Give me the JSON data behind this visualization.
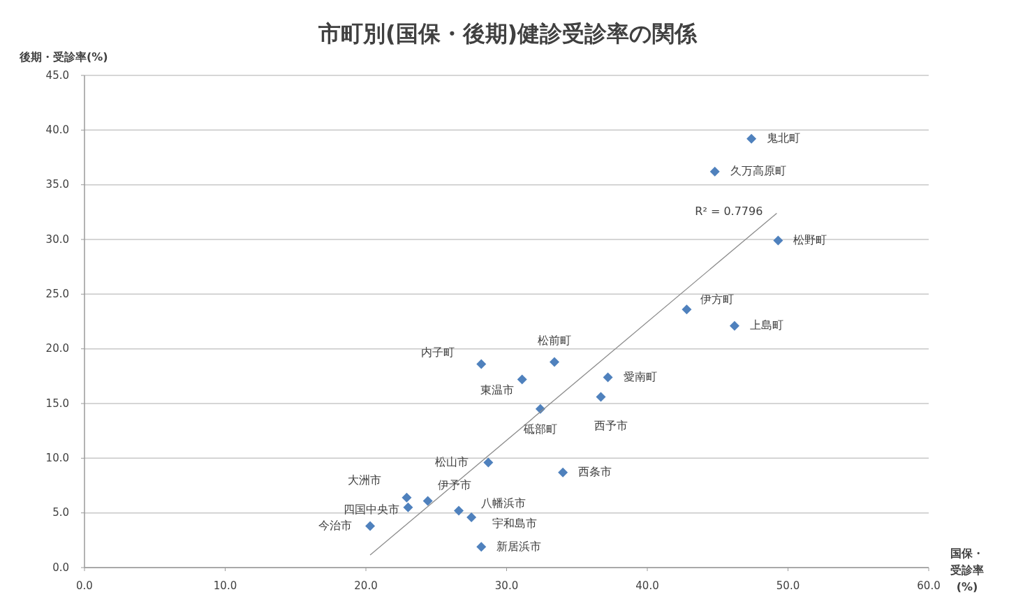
{
  "chart_data": {
    "type": "scatter",
    "title": "市町別(国保・後期)健診受診率の関係",
    "xlabel": "国保・受診率(%)",
    "ylabel": "後期・受診率(%)",
    "xlim": [
      0,
      60
    ],
    "ylim": [
      0,
      45
    ],
    "xticks": [
      {
        "value": 0,
        "label": "0.0"
      },
      {
        "value": 10,
        "label": "10.0"
      },
      {
        "value": 20,
        "label": "20.0"
      },
      {
        "value": 30,
        "label": "30.0"
      },
      {
        "value": 40,
        "label": "40.0"
      },
      {
        "value": 50,
        "label": "50.0"
      },
      {
        "value": 60,
        "label": "60.0"
      }
    ],
    "yticks": [
      {
        "value": 0,
        "label": "0.0"
      },
      {
        "value": 5,
        "label": "5.0"
      },
      {
        "value": 10,
        "label": "10.0"
      },
      {
        "value": 15,
        "label": "15.0"
      },
      {
        "value": 20,
        "label": "20.0"
      },
      {
        "value": 25,
        "label": "25.0"
      },
      {
        "value": 30,
        "label": "30.0"
      },
      {
        "value": 35,
        "label": "35.0"
      },
      {
        "value": 40,
        "label": "40.0"
      },
      {
        "value": 45,
        "label": "45.0"
      }
    ],
    "grid": "y",
    "series": [
      {
        "marker": "diamond",
        "color": "#4f81bd",
        "x": [
          47.4,
          44.8,
          49.3,
          42.8,
          46.2,
          33.4,
          28.2,
          31.1,
          37.2,
          36.7,
          32.4,
          28.7,
          34.0,
          22.9,
          23.0,
          24.4,
          26.6,
          27.5,
          20.3,
          28.2
        ],
        "values": [
          39.2,
          36.2,
          29.9,
          23.6,
          22.1,
          18.8,
          18.6,
          17.2,
          17.4,
          15.6,
          14.5,
          9.6,
          8.7,
          6.4,
          5.5,
          6.1,
          5.2,
          4.6,
          3.8,
          1.9
        ]
      },
      {
        "type": "line",
        "color": "#8c8c8c",
        "x": [
          20.3,
          49.2
        ],
        "values": [
          1.15,
          32.4
        ]
      }
    ],
    "annotations": [
      {
        "text": "鬼北町",
        "x": 47.4,
        "y": 39.2
      },
      {
        "text": "久万高原町",
        "x": 44.8,
        "y": 36.2
      },
      {
        "text": "松野町",
        "x": 49.3,
        "y": 29.9
      },
      {
        "text": "伊方町",
        "x": 42.8,
        "y": 23.6
      },
      {
        "text": "上島町",
        "x": 46.2,
        "y": 22.1
      },
      {
        "text": "松前町",
        "x": 33.4,
        "y": 18.8
      },
      {
        "text": "内子町",
        "x": 28.2,
        "y": 18.6
      },
      {
        "text": "東温市",
        "x": 31.1,
        "y": 17.2
      },
      {
        "text": "愛南町",
        "x": 37.2,
        "y": 17.4
      },
      {
        "text": "西予市",
        "x": 36.7,
        "y": 15.6
      },
      {
        "text": "砥部町",
        "x": 32.4,
        "y": 14.5
      },
      {
        "text": "松山市",
        "x": 28.7,
        "y": 9.6
      },
      {
        "text": "西条市",
        "x": 34.0,
        "y": 8.7
      },
      {
        "text": "大洲市",
        "x": 22.9,
        "y": 6.4
      },
      {
        "text": "四国中央市",
        "x": 23.0,
        "y": 5.5
      },
      {
        "text": "伊予市",
        "x": 24.4,
        "y": 6.1
      },
      {
        "text": "八幡浜市",
        "x": 26.6,
        "y": 5.2
      },
      {
        "text": "宇和島市",
        "x": 27.5,
        "y": 4.6
      },
      {
        "text": "今治市",
        "x": 20.3,
        "y": 3.8
      },
      {
        "text": "新居浜市",
        "x": 28.2,
        "y": 1.9
      },
      "R² = 0.7796"
    ]
  }
}
